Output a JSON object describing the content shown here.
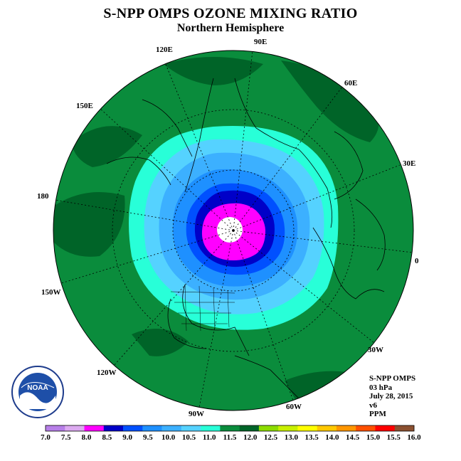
{
  "header": {
    "title": "S-NPP OMPS OZONE MIXING RATIO",
    "subtitle": "Northern Hemisphere"
  },
  "info": {
    "instrument": "S-NPP OMPS",
    "level": "03 hPa",
    "date": "July 28, 2015",
    "version": "v6",
    "units": "PPM"
  },
  "logo": {
    "text": "NOAA"
  },
  "longitude_labels": [
    "90E",
    "60E",
    "30E",
    "0",
    "30W",
    "60W",
    "90W",
    "120W",
    "150W",
    "180",
    "150E",
    "120E"
  ],
  "colorbar": {
    "ticks": [
      "7.0",
      "7.5",
      "8.0",
      "8.5",
      "9.0",
      "9.5",
      "10.0",
      "10.5",
      "11.0",
      "11.5",
      "12.0",
      "12.5",
      "13.0",
      "13.5",
      "14.0",
      "14.5",
      "15.0",
      "15.5",
      "16.0"
    ],
    "colors": [
      "#b77fe8",
      "#dcaaf0",
      "#ff00ff",
      "#0000c8",
      "#0050ff",
      "#1e90ff",
      "#3cb0ff",
      "#55d2ff",
      "#28ffd8",
      "#0a8c3c",
      "#006428",
      "#8cdc00",
      "#c8f000",
      "#ffff00",
      "#ffc800",
      "#ff9600",
      "#ff5000",
      "#ff0000",
      "#8b5030"
    ]
  },
  "map_colors": {
    "background": "#0a8c3c",
    "dark_green": "#006428",
    "aqua": "#28ffd8",
    "light_blue": "#55d2ff",
    "sky_blue": "#3cb0ff",
    "dodger_blue": "#1e90ff",
    "blue": "#0050ff",
    "navy": "#0000c8",
    "magenta": "#ff00ff",
    "pole_hole": "#ffffff"
  }
}
